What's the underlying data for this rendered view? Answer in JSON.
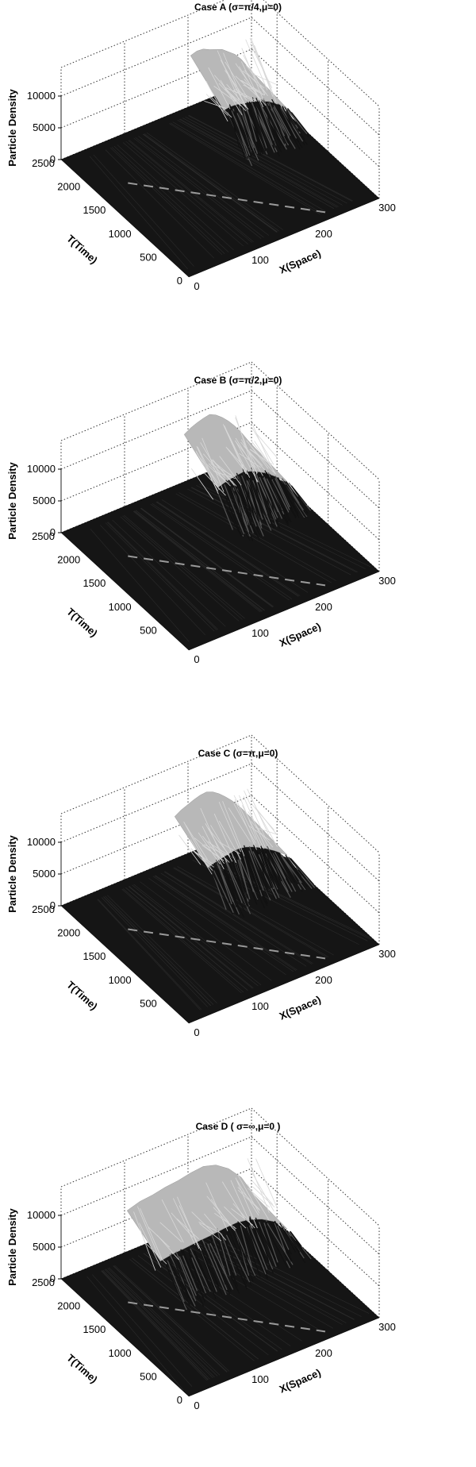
{
  "figure": {
    "axes_labels": {
      "z": "Particle Density",
      "t": "T(Time)",
      "x": "X(Space)"
    },
    "color_scale": "grayscale"
  },
  "chart_data": [
    {
      "type": "surface",
      "title": "Case A (σ=π/4,μ=0)",
      "xlabel": "X(Space)",
      "ylabel": "T(Time)",
      "zlabel": "Particle Density",
      "xlim": [
        0,
        300
      ],
      "ylim": [
        0,
        2500
      ],
      "zlim": [
        0,
        10000
      ],
      "x_ticks": [
        "0",
        "100",
        "200",
        "300"
      ],
      "t_ticks": [
        "0",
        "500",
        "1000",
        "1500",
        "2000",
        "2500"
      ],
      "z_ticks": [
        "0",
        "5000",
        "10000"
      ],
      "grid": true,
      "ridge_start_x": 200,
      "ridge_peak_density": 9000,
      "front_profile": [
        {
          "x": 200,
          "density": 8500
        },
        {
          "x": 210,
          "density": 8800
        },
        {
          "x": 220,
          "density": 8700
        },
        {
          "x": 230,
          "density": 8200
        },
        {
          "x": 240,
          "density": 7800
        },
        {
          "x": 250,
          "density": 7400
        },
        {
          "x": 260,
          "density": 6600
        },
        {
          "x": 270,
          "density": 5800
        },
        {
          "x": 280,
          "density": 4600
        },
        {
          "x": 290,
          "density": 3000
        },
        {
          "x": 300,
          "density": 1500
        }
      ]
    },
    {
      "type": "surface",
      "title": "Case B (σ=π/2,μ=0)",
      "xlabel": "X(Space)",
      "ylabel": "T(Time)",
      "zlabel": "Particle Density",
      "xlim": [
        0,
        300
      ],
      "ylim": [
        0,
        2500
      ],
      "zlim": [
        0,
        10000
      ],
      "x_ticks": [
        "0",
        "100",
        "200",
        "300"
      ],
      "t_ticks": [
        "500",
        "1000",
        "1500",
        "2000",
        "2500"
      ],
      "z_ticks": [
        "0",
        "5000",
        "10000"
      ],
      "grid": true,
      "ridge_start_x": 190,
      "ridge_peak_density": 9500,
      "front_profile": [
        {
          "x": 190,
          "density": 8000
        },
        {
          "x": 200,
          "density": 8600
        },
        {
          "x": 210,
          "density": 9000
        },
        {
          "x": 220,
          "density": 9300
        },
        {
          "x": 230,
          "density": 9500
        },
        {
          "x": 240,
          "density": 9000
        },
        {
          "x": 250,
          "density": 8200
        },
        {
          "x": 260,
          "density": 7200
        },
        {
          "x": 270,
          "density": 6000
        },
        {
          "x": 280,
          "density": 4600
        },
        {
          "x": 290,
          "density": 3000
        },
        {
          "x": 300,
          "density": 1500
        }
      ]
    },
    {
      "type": "surface",
      "title": "Case C (σ=π,μ=0)",
      "xlabel": "X(Space)",
      "ylabel": "T(Time)",
      "zlabel": "Particle Density",
      "xlim": [
        0,
        300
      ],
      "ylim": [
        0,
        2500
      ],
      "zlim": [
        0,
        10000
      ],
      "x_ticks": [
        "0",
        "100",
        "200",
        "300"
      ],
      "t_ticks": [
        "500",
        "1000",
        "1500",
        "2000",
        "2500"
      ],
      "z_ticks": [
        "0",
        "5000",
        "10000"
      ],
      "grid": true,
      "ridge_start_x": 175,
      "ridge_peak_density": 9000,
      "front_profile": [
        {
          "x": 175,
          "density": 7200
        },
        {
          "x": 185,
          "density": 7800
        },
        {
          "x": 195,
          "density": 8200
        },
        {
          "x": 205,
          "density": 8600
        },
        {
          "x": 215,
          "density": 8900
        },
        {
          "x": 225,
          "density": 9000
        },
        {
          "x": 235,
          "density": 8600
        },
        {
          "x": 245,
          "density": 7900
        },
        {
          "x": 255,
          "density": 7000
        },
        {
          "x": 265,
          "density": 6000
        },
        {
          "x": 280,
          "density": 4200
        },
        {
          "x": 290,
          "density": 2800
        },
        {
          "x": 300,
          "density": 1400
        }
      ]
    },
    {
      "type": "surface",
      "title": "Case D ( σ=∞,μ=0 )",
      "xlabel": "X(Space)",
      "ylabel": "T(Time)",
      "zlabel": "Particle Density",
      "xlim": [
        0,
        300
      ],
      "ylim": [
        0,
        2500
      ],
      "zlim": [
        0,
        10000
      ],
      "x_ticks": [
        "0",
        "100",
        "200",
        "300"
      ],
      "t_ticks": [
        "0",
        "500",
        "1000",
        "1500",
        "2000",
        "2500"
      ],
      "z_ticks": [
        "0",
        "5000",
        "10000"
      ],
      "grid": true,
      "ridge_start_x": 100,
      "ridge_peak_density": 9000,
      "front_profile": [
        {
          "x": 100,
          "density": 7000
        },
        {
          "x": 120,
          "density": 7600
        },
        {
          "x": 140,
          "density": 7800
        },
        {
          "x": 160,
          "density": 8200
        },
        {
          "x": 180,
          "density": 8400
        },
        {
          "x": 200,
          "density": 8800
        },
        {
          "x": 220,
          "density": 9000
        },
        {
          "x": 240,
          "density": 8400
        },
        {
          "x": 260,
          "density": 7000
        },
        {
          "x": 280,
          "density": 4800
        },
        {
          "x": 300,
          "density": 1200
        }
      ]
    }
  ]
}
